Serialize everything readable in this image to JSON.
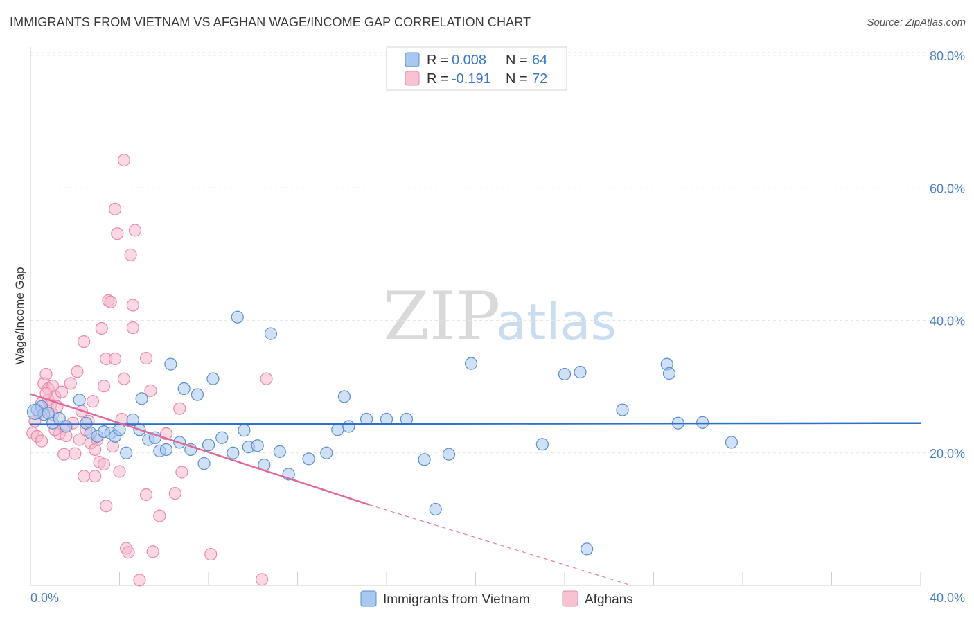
{
  "title": "IMMIGRANTS FROM VIETNAM VS AFGHAN WAGE/INCOME GAP CORRELATION CHART",
  "source": "Source: ZipAtlas.com",
  "watermark": {
    "zip": "ZIP",
    "atlas": "atlas"
  },
  "colors": {
    "blue_fill": "#a9c8ef",
    "blue_stroke": "#5b8fd0",
    "blue_line": "#2f6fca",
    "pink_fill": "#f7b8cc",
    "pink_stroke": "#e98aa8",
    "pink_line": "#e0679a",
    "grid": "#e6e6e6",
    "tick_text": "#4a7fc4"
  },
  "legend": {
    "rows": [
      {
        "r_label": "R =",
        "r_value": "0.008",
        "n_label": "N =",
        "n_value": "64"
      },
      {
        "r_label": "R =",
        "r_value": "-0.191",
        "n_label": "N =",
        "n_value": "72"
      }
    ]
  },
  "chart_data": {
    "type": "scatter",
    "title": "IMMIGRANTS FROM VIETNAM VS AFGHAN WAGE/INCOME GAP CORRELATION CHART",
    "xlabel": "",
    "ylabel": "Wage/Income Gap",
    "xlim": [
      0,
      40
    ],
    "ylim": [
      0,
      80
    ],
    "x_tick_labels": [
      "0.0%",
      "40.0%"
    ],
    "y_ticks": [
      20,
      40,
      60,
      80
    ],
    "y_tick_labels": [
      "20.0%",
      "40.0%",
      "60.0%",
      "80.0%"
    ],
    "grid": true,
    "legend_position": "top-center",
    "series": [
      {
        "name": "Immigrants from Vietnam",
        "r": 0.008,
        "n": 64,
        "trend": {
          "x": [
            0,
            40
          ],
          "y": [
            24.3,
            24.5
          ],
          "dashed_from": null
        },
        "points": [
          [
            0.3,
            26.5
          ],
          [
            0.5,
            27.0
          ],
          [
            0.6,
            25.8
          ],
          [
            0.8,
            26.0
          ],
          [
            1.0,
            24.5
          ],
          [
            1.3,
            25.2
          ],
          [
            1.6,
            24.0
          ],
          [
            2.2,
            28.0
          ],
          [
            2.5,
            24.5
          ],
          [
            2.7,
            23.0
          ],
          [
            3.0,
            22.5
          ],
          [
            3.3,
            23.2
          ],
          [
            3.6,
            23.0
          ],
          [
            3.8,
            22.5
          ],
          [
            4.0,
            23.5
          ],
          [
            4.3,
            20.0
          ],
          [
            4.6,
            25.0
          ],
          [
            4.9,
            23.5
          ],
          [
            5.0,
            28.2
          ],
          [
            5.3,
            22.0
          ],
          [
            5.6,
            22.3
          ],
          [
            5.8,
            20.3
          ],
          [
            6.1,
            20.5
          ],
          [
            6.3,
            33.4
          ],
          [
            6.7,
            21.6
          ],
          [
            6.9,
            29.7
          ],
          [
            7.2,
            20.5
          ],
          [
            7.5,
            28.8
          ],
          [
            7.8,
            18.4
          ],
          [
            8.0,
            21.2
          ],
          [
            8.2,
            31.2
          ],
          [
            8.6,
            22.3
          ],
          [
            9.1,
            20.0
          ],
          [
            9.3,
            40.5
          ],
          [
            9.6,
            23.4
          ],
          [
            9.8,
            20.9
          ],
          [
            10.2,
            21.1
          ],
          [
            10.5,
            18.2
          ],
          [
            10.8,
            38.0
          ],
          [
            11.2,
            20.2
          ],
          [
            11.6,
            16.8
          ],
          [
            12.5,
            19.1
          ],
          [
            13.3,
            20.0
          ],
          [
            13.8,
            23.5
          ],
          [
            14.1,
            28.5
          ],
          [
            14.3,
            24.0
          ],
          [
            15.1,
            25.1
          ],
          [
            16.0,
            25.1
          ],
          [
            16.9,
            25.1
          ],
          [
            17.7,
            19.0
          ],
          [
            18.2,
            11.5
          ],
          [
            18.8,
            19.8
          ],
          [
            19.8,
            33.5
          ],
          [
            23.0,
            21.3
          ],
          [
            24.0,
            31.9
          ],
          [
            24.7,
            32.2
          ],
          [
            25.0,
            5.5
          ],
          [
            26.6,
            26.5
          ],
          [
            28.6,
            33.4
          ],
          [
            28.7,
            32.0
          ],
          [
            29.1,
            24.5
          ],
          [
            30.2,
            24.6
          ],
          [
            31.5,
            21.6
          ],
          [
            0.2,
            26.2
          ]
        ]
      },
      {
        "name": "Afghans",
        "r": -0.191,
        "n": 72,
        "trend": {
          "x": [
            0,
            15.2
          ],
          "y": [
            28.9,
            12.2
          ],
          "dashed_to": [
            27.0,
            -0.8
          ]
        },
        "points": [
          [
            0.1,
            23.0
          ],
          [
            0.2,
            24.8
          ],
          [
            0.3,
            22.5
          ],
          [
            0.4,
            26.0
          ],
          [
            0.5,
            27.5
          ],
          [
            0.5,
            21.8
          ],
          [
            0.6,
            30.5
          ],
          [
            0.7,
            31.9
          ],
          [
            0.8,
            29.7
          ],
          [
            0.8,
            28.0
          ],
          [
            0.9,
            27.2
          ],
          [
            1.0,
            30.1
          ],
          [
            1.0,
            25.8
          ],
          [
            1.1,
            28.5
          ],
          [
            1.2,
            27.0
          ],
          [
            1.3,
            22.9
          ],
          [
            1.4,
            29.2
          ],
          [
            1.5,
            24.0
          ],
          [
            1.6,
            22.6
          ],
          [
            1.8,
            30.5
          ],
          [
            1.9,
            24.5
          ],
          [
            2.0,
            19.9
          ],
          [
            2.1,
            32.3
          ],
          [
            2.2,
            22.0
          ],
          [
            2.3,
            26.3
          ],
          [
            2.4,
            36.8
          ],
          [
            2.4,
            16.5
          ],
          [
            2.5,
            23.5
          ],
          [
            2.6,
            24.8
          ],
          [
            2.7,
            21.5
          ],
          [
            2.8,
            27.8
          ],
          [
            2.9,
            20.5
          ],
          [
            3.0,
            22.0
          ],
          [
            3.1,
            18.6
          ],
          [
            3.2,
            38.8
          ],
          [
            3.3,
            18.3
          ],
          [
            3.3,
            30.1
          ],
          [
            3.4,
            34.2
          ],
          [
            3.4,
            12.0
          ],
          [
            3.5,
            43.0
          ],
          [
            3.6,
            42.8
          ],
          [
            3.7,
            21.0
          ],
          [
            3.8,
            56.8
          ],
          [
            3.8,
            34.2
          ],
          [
            3.9,
            53.1
          ],
          [
            4.0,
            17.2
          ],
          [
            4.1,
            25.1
          ],
          [
            4.2,
            31.2
          ],
          [
            4.2,
            64.2
          ],
          [
            4.3,
            5.6
          ],
          [
            4.4,
            5.0
          ],
          [
            4.5,
            49.9
          ],
          [
            4.6,
            42.3
          ],
          [
            4.6,
            38.9
          ],
          [
            4.7,
            53.6
          ],
          [
            4.9,
            0.8
          ],
          [
            5.2,
            13.7
          ],
          [
            5.2,
            34.3
          ],
          [
            5.4,
            29.4
          ],
          [
            5.5,
            5.1
          ],
          [
            5.8,
            10.5
          ],
          [
            6.1,
            22.9
          ],
          [
            6.5,
            13.9
          ],
          [
            6.7,
            26.7
          ],
          [
            6.8,
            17.1
          ],
          [
            8.1,
            4.7
          ],
          [
            10.4,
            0.9
          ],
          [
            10.6,
            31.2
          ],
          [
            1.5,
            19.8
          ],
          [
            2.9,
            16.5
          ],
          [
            0.7,
            29.0
          ],
          [
            1.1,
            23.5
          ]
        ]
      }
    ]
  },
  "bottom_legend": {
    "items": [
      {
        "label": "Immigrants from Vietnam"
      },
      {
        "label": "Afghans"
      }
    ]
  }
}
